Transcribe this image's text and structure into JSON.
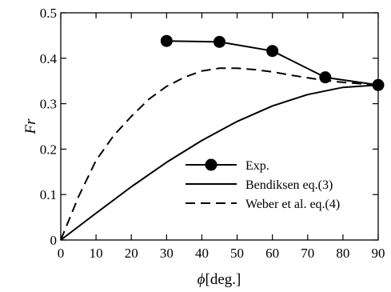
{
  "chart_data": {
    "type": "line",
    "xlabel_symbol": "ϕ",
    "xlabel_unit": "[deg.]",
    "ylabel": "Fr",
    "xlim": [
      0,
      90
    ],
    "ylim": [
      0,
      0.5
    ],
    "xticks": [
      0,
      10,
      20,
      30,
      40,
      50,
      60,
      70,
      80,
      90
    ],
    "yticks": [
      0,
      0.1,
      0.2,
      0.3,
      0.4,
      0.5
    ],
    "ytick_labels": [
      "0",
      "0.1",
      "0.2",
      "0.3",
      "0.4",
      "0.5"
    ],
    "grid": false,
    "legend_position": "lower-right",
    "series": [
      {
        "name": "Exp.",
        "style": "solid-markers",
        "x": [
          30,
          45,
          60,
          75,
          90
        ],
        "y": [
          0.438,
          0.436,
          0.416,
          0.358,
          0.341
        ]
      },
      {
        "name": "Bendiksen eq.(3)",
        "style": "solid",
        "x": [
          0,
          10,
          20,
          30,
          40,
          50,
          60,
          70,
          80,
          90
        ],
        "y": [
          0,
          0.059,
          0.117,
          0.171,
          0.219,
          0.261,
          0.295,
          0.32,
          0.336,
          0.341
        ]
      },
      {
        "name": "Weber et al. eq.(4)",
        "style": "dashed",
        "x": [
          0,
          5,
          10,
          15,
          20,
          25,
          30,
          35,
          40,
          45,
          50,
          55,
          60,
          65,
          70,
          75,
          80,
          85,
          90
        ],
        "y": [
          0,
          0.095,
          0.175,
          0.23,
          0.272,
          0.31,
          0.338,
          0.358,
          0.372,
          0.378,
          0.378,
          0.375,
          0.37,
          0.363,
          0.357,
          0.351,
          0.347,
          0.344,
          0.341
        ]
      }
    ]
  }
}
